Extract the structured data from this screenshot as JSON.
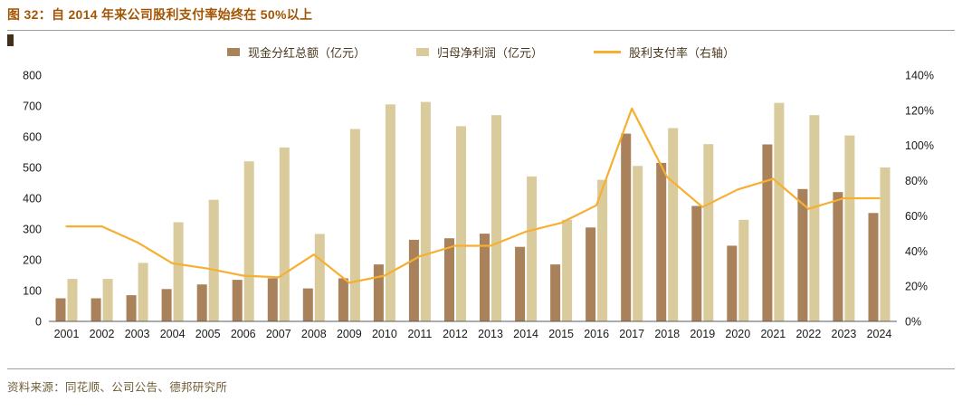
{
  "header": {
    "title": "图 32：自 2014 年来公司股利支付率始终在 50%以上"
  },
  "footer": {
    "source": "资料来源：同花顺、公司公告、德邦研究所"
  },
  "colors": {
    "title": "#A35504",
    "divider": "#9e9e9e",
    "marker": "#43301c",
    "axis_text": "#1a1a1a"
  },
  "chart_data": {
    "type": "bar+line",
    "title": "自 2014 年来公司股利支付率始终在 50%以上",
    "legend_position": "top",
    "grid": false,
    "categories": [
      "2001",
      "2002",
      "2003",
      "2004",
      "2005",
      "2006",
      "2007",
      "2008",
      "2009",
      "2010",
      "2011",
      "2012",
      "2013",
      "2014",
      "2015",
      "2016",
      "2017",
      "2018",
      "2019",
      "2020",
      "2021",
      "2022",
      "2023",
      "2024"
    ],
    "series": [
      {
        "name": "现金分红总额（亿元）",
        "type": "bar",
        "axis": "left",
        "color": "#A9815A",
        "values": [
          75,
          75,
          85,
          105,
          120,
          135,
          140,
          107,
          140,
          185,
          265,
          270,
          285,
          242,
          185,
          305,
          610,
          515,
          375,
          246,
          575,
          430,
          420,
          352
        ]
      },
      {
        "name": "归母净利润（亿元）",
        "type": "bar",
        "axis": "left",
        "color": "#DACB9D",
        "values": [
          138,
          138,
          190,
          322,
          395,
          520,
          565,
          284,
          625,
          705,
          713,
          634,
          670,
          471,
          330,
          460,
          505,
          628,
          576,
          330,
          710,
          670,
          604,
          500
        ]
      },
      {
        "name": "股利支付率（右轴）",
        "type": "line",
        "axis": "right",
        "color": "#F7AF32",
        "values": [
          54,
          54,
          45,
          33,
          30,
          26,
          25,
          38,
          22,
          26,
          37,
          43,
          43,
          51,
          56,
          66,
          121,
          82,
          65,
          75,
          81,
          64,
          70,
          70
        ]
      }
    ],
    "left_axis": {
      "min": 0,
      "max": 800,
      "step": 100
    },
    "right_axis": {
      "min": 0,
      "max": 140,
      "step": 20,
      "suffix": "%"
    }
  }
}
